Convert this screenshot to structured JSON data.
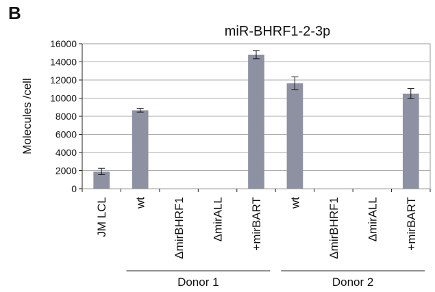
{
  "panel_letter": "B",
  "chart_data": {
    "type": "bar",
    "title": "miR-BHRF1-2-3p",
    "ylabel": "Molecules /cell",
    "xlabel": "",
    "ylim": [
      0,
      16000
    ],
    "yticks": [
      0,
      2000,
      4000,
      6000,
      8000,
      10000,
      12000,
      14000,
      16000
    ],
    "grid": true,
    "categories": [
      "JM LCL",
      "wt",
      "ΔmirBHRF1",
      "ΔmirALL",
      "+mirBART",
      "wt",
      "ΔmirBHRF1",
      "ΔmirALL",
      "+mirBART"
    ],
    "values": [
      1900,
      8650,
      0,
      0,
      14800,
      11650,
      0,
      0,
      10500
    ],
    "errors": [
      350,
      200,
      0,
      0,
      450,
      700,
      0,
      0,
      550
    ],
    "groups": [
      {
        "label": "Donor 1",
        "from": 1,
        "to": 4
      },
      {
        "label": "Donor 2",
        "from": 5,
        "to": 8
      }
    ],
    "bar_color": "#8e91a2"
  }
}
